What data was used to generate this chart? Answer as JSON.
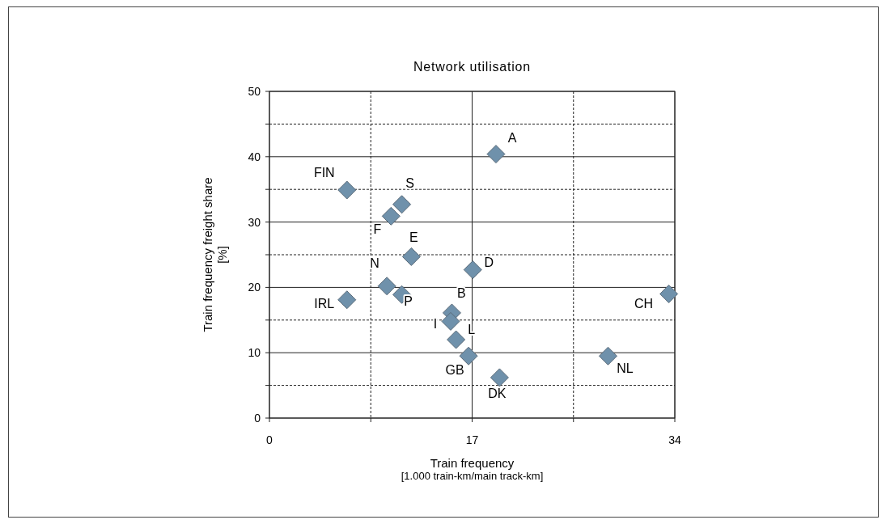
{
  "chart_data": {
    "type": "scatter",
    "title": "Network utilisation",
    "xlabel": "Train frequency\n[1.000 train-km/main track-km]",
    "ylabel": "Train frequency freight share\n[%]",
    "x": [
      19.0,
      6.5,
      11.1,
      10.2,
      11.9,
      17.05,
      9.85,
      11.1,
      6.5,
      15.3,
      15.2,
      15.65,
      16.7,
      19.3,
      28.4,
      33.5
    ],
    "series": [
      {
        "color": "#6f91ab",
        "values": [
          40.4,
          34.9,
          32.7,
          30.9,
          24.7,
          22.7,
          20.2,
          18.9,
          18.1,
          16.1,
          14.8,
          12.0,
          9.5,
          6.2,
          9.5,
          19.0
        ]
      }
    ],
    "marker": "diamond",
    "grid": true,
    "xlim": [
      0,
      34
    ],
    "xticks": [
      0,
      {
        "value": 8.5,
        "label": null
      },
      17,
      {
        "value": 25.5,
        "label": null
      },
      34
    ],
    "ylim": [
      0,
      50
    ],
    "yticks": [
      0,
      {
        "value": 5,
        "label": null
      },
      10,
      {
        "value": 15,
        "label": null
      },
      20,
      {
        "value": 25,
        "label": null
      },
      30,
      {
        "value": 35,
        "label": null
      },
      40,
      {
        "value": 45,
        "label": null
      },
      50
    ],
    "annotations": [
      {
        "text": "A",
        "x": 19.0,
        "y": 40.4
      },
      {
        "text": "FIN",
        "x": 6.5,
        "y": 34.9
      },
      {
        "text": "S",
        "x": 11.1,
        "y": 32.7
      },
      {
        "text": "F",
        "x": 10.2,
        "y": 30.9
      },
      {
        "text": "E",
        "x": 11.9,
        "y": 24.7
      },
      {
        "text": "D",
        "x": 17.05,
        "y": 22.7
      },
      {
        "text": "N",
        "x": 9.85,
        "y": 20.2
      },
      {
        "text": "P",
        "x": 11.1,
        "y": 18.9
      },
      {
        "text": "IRL",
        "x": 6.5,
        "y": 18.1
      },
      {
        "text": "B",
        "x": 15.3,
        "y": 16.1
      },
      {
        "text": "I",
        "x": 15.2,
        "y": 14.8
      },
      {
        "text": "L",
        "x": 15.65,
        "y": 12.0
      },
      {
        "text": "GB",
        "x": 16.7,
        "y": 9.5
      },
      {
        "text": "DK",
        "x": 19.3,
        "y": 6.2
      },
      {
        "text": "NL",
        "x": 28.4,
        "y": 9.5
      },
      {
        "text": "CH",
        "x": 33.5,
        "y": 19.0
      }
    ]
  }
}
